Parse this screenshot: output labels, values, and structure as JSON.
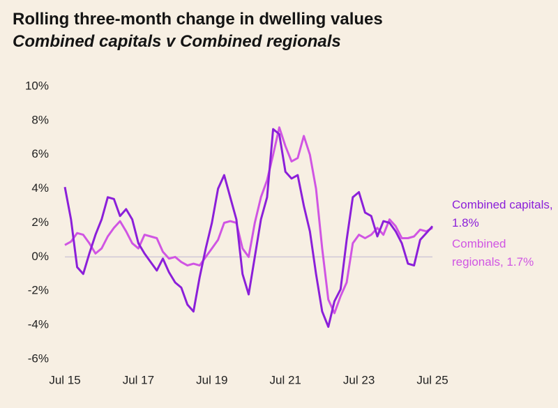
{
  "chart_data": {
    "type": "line",
    "title": "Rolling three-month change in dwelling values",
    "subtitle": "Combined capitals v Combined regionals",
    "categories": [
      "Jul 15",
      null,
      null,
      null,
      null,
      null,
      null,
      null,
      null,
      null,
      null,
      null,
      "Jul 17",
      null,
      null,
      null,
      null,
      null,
      null,
      null,
      null,
      null,
      null,
      null,
      "Jul 19",
      null,
      null,
      null,
      null,
      null,
      null,
      null,
      null,
      null,
      null,
      null,
      "Jul 21",
      null,
      null,
      null,
      null,
      null,
      null,
      null,
      null,
      null,
      null,
      null,
      "Jul 23",
      null,
      null,
      null,
      null,
      null,
      null,
      null,
      null,
      null,
      null,
      null,
      "Jul 25"
    ],
    "series": [
      {
        "name": "Combined capitals, 1.8%",
        "color": "#8b1fd9",
        "values": [
          4.1,
          2.2,
          -0.6,
          -1.0,
          0.2,
          1.3,
          2.2,
          3.5,
          3.4,
          2.4,
          2.8,
          2.2,
          0.8,
          0.2,
          -0.3,
          -0.8,
          -0.1,
          -0.9,
          -1.5,
          -1.8,
          -2.8,
          -3.2,
          -1.2,
          0.5,
          2.0,
          4.0,
          4.8,
          3.5,
          2.2,
          -1.0,
          -2.2,
          0.0,
          2.2,
          3.5,
          7.5,
          7.2,
          5.0,
          4.6,
          4.8,
          3.0,
          1.5,
          -1.0,
          -3.2,
          -4.1,
          -2.6,
          -1.9,
          1.0,
          3.5,
          3.8,
          2.6,
          2.4,
          1.2,
          2.1,
          2.0,
          1.5,
          0.8,
          -0.4,
          -0.5,
          1.0,
          1.4,
          1.8
        ]
      },
      {
        "name": "Combined regionals, 1.7%",
        "color": "#d055e3",
        "values": [
          0.7,
          0.9,
          1.4,
          1.3,
          0.8,
          0.2,
          0.5,
          1.2,
          1.7,
          2.1,
          1.5,
          0.8,
          0.5,
          1.3,
          1.2,
          1.1,
          0.3,
          -0.1,
          0.0,
          -0.3,
          -0.5,
          -0.4,
          -0.5,
          0.0,
          0.5,
          1.0,
          2.0,
          2.1,
          2.0,
          0.5,
          0.0,
          2.0,
          3.5,
          4.5,
          6.0,
          7.6,
          6.5,
          5.6,
          5.8,
          7.1,
          6.0,
          4.0,
          0.5,
          -2.5,
          -3.3,
          -2.3,
          -1.5,
          0.8,
          1.3,
          1.1,
          1.3,
          1.7,
          1.3,
          2.2,
          1.8,
          1.1,
          1.1,
          1.2,
          1.6,
          1.5,
          1.7
        ]
      }
    ],
    "ylim": [
      -6,
      10
    ],
    "yticks": [
      {
        "value": -6,
        "label": "-6%"
      },
      {
        "value": -4,
        "label": "-4%"
      },
      {
        "value": -2,
        "label": "-2%"
      },
      {
        "value": 0,
        "label": "0%"
      },
      {
        "value": 2,
        "label": "2%"
      },
      {
        "value": 4,
        "label": "4%"
      },
      {
        "value": 6,
        "label": "6%"
      },
      {
        "value": 8,
        "label": "8%"
      },
      {
        "value": 10,
        "label": "10%"
      }
    ],
    "zero_line": true,
    "grid": false
  }
}
